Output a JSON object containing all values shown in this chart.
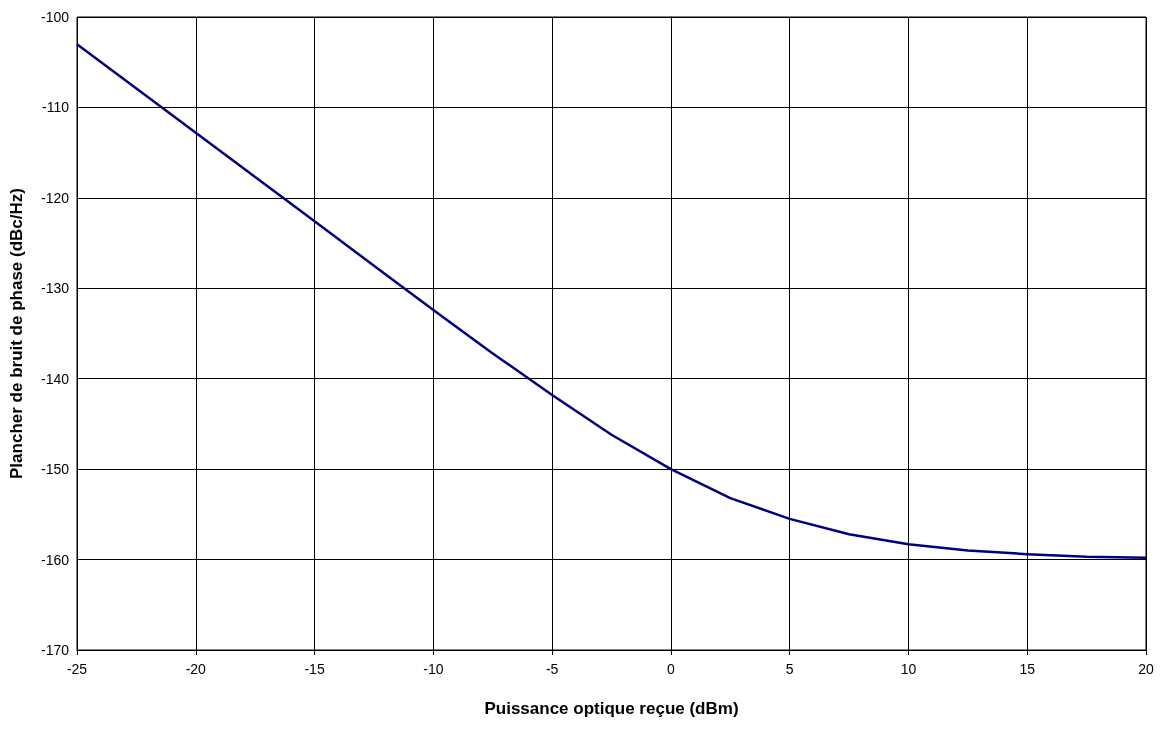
{
  "chart_data": {
    "type": "line",
    "xlabel": "Puissance optique reçue (dBm)",
    "ylabel": "Plancher de bruit de phase (dBc/Hz)",
    "x": [
      -25,
      -22.5,
      -20,
      -17.5,
      -15,
      -12.5,
      -10,
      -7.5,
      -5,
      -2.5,
      0,
      2.5,
      5,
      7.5,
      10,
      12.5,
      15,
      17.5,
      20
    ],
    "series": [
      {
        "color": "#000080",
        "values": [
          -103,
          -107.9,
          -112.8,
          -117.7,
          -122.6,
          -127.5,
          -132.4,
          -137.2,
          -141.8,
          -146.2,
          -150,
          -153.2,
          -155.5,
          -157.2,
          -158.3,
          -159,
          -159.4,
          -159.7,
          -159.8
        ]
      }
    ],
    "xlim": [
      -25,
      20
    ],
    "xticks": [
      -25,
      -20,
      -15,
      -10,
      -5,
      0,
      5,
      10,
      15,
      20
    ],
    "ylim": [
      -170,
      -100
    ],
    "yticks": [
      -170,
      -160,
      -150,
      -140,
      -130,
      -120,
      -110,
      -100
    ],
    "grid": true,
    "marker": "none",
    "line_style": "solid"
  }
}
